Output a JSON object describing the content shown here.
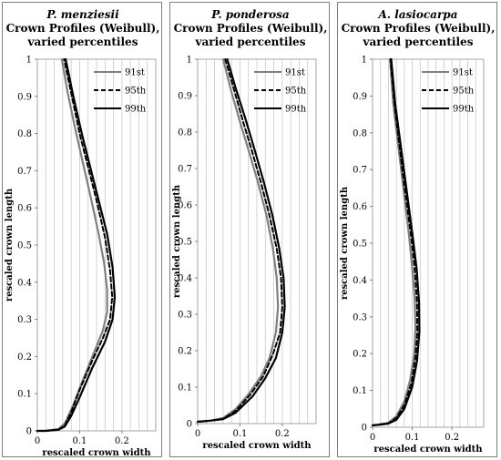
{
  "chart_data": [
    {
      "type": "line",
      "title_species": "P. menziesii",
      "title_lines": [
        "Crown Profiles (Weibull),",
        "varied percentiles"
      ],
      "xlabel": "rescaled crown width",
      "ylabel": "rescaled crown length",
      "xlim": [
        0,
        0.28
      ],
      "ylim": [
        0,
        1
      ],
      "x_ticks": [
        "0",
        "0.1",
        "0.2"
      ],
      "y_ticks": [
        "0",
        "0.1",
        "0.2",
        "0.3",
        "0.4",
        "0.5",
        "0.6",
        "0.7",
        "0.8",
        "0.9",
        "1"
      ],
      "legend_position": "top-right",
      "series": [
        {
          "name": "91st",
          "color": "#808080",
          "style": "solid",
          "points": [
            [
              0,
              0
            ],
            [
              0.02,
              0
            ],
            [
              0.05,
              0.005
            ],
            [
              0.065,
              0.02
            ],
            [
              0.085,
              0.07
            ],
            [
              0.105,
              0.13
            ],
            [
              0.13,
              0.2
            ],
            [
              0.155,
              0.27
            ],
            [
              0.165,
              0.32
            ],
            [
              0.165,
              0.38
            ],
            [
              0.158,
              0.45
            ],
            [
              0.145,
              0.53
            ],
            [
              0.128,
              0.62
            ],
            [
              0.108,
              0.72
            ],
            [
              0.088,
              0.82
            ],
            [
              0.07,
              0.92
            ],
            [
              0.058,
              1.0
            ]
          ]
        },
        {
          "name": "95th",
          "color": "#000000",
          "style": "dashed",
          "points": [
            [
              0,
              0
            ],
            [
              0.02,
              0
            ],
            [
              0.05,
              0.003
            ],
            [
              0.065,
              0.015
            ],
            [
              0.08,
              0.05
            ],
            [
              0.1,
              0.11
            ],
            [
              0.13,
              0.19
            ],
            [
              0.155,
              0.25
            ],
            [
              0.172,
              0.3
            ],
            [
              0.177,
              0.36
            ],
            [
              0.172,
              0.43
            ],
            [
              0.16,
              0.52
            ],
            [
              0.14,
              0.62
            ],
            [
              0.12,
              0.71
            ],
            [
              0.1,
              0.8
            ],
            [
              0.08,
              0.91
            ],
            [
              0.063,
              1.0
            ]
          ]
        },
        {
          "name": "99th",
          "color": "#000000",
          "style": "solid",
          "points": [
            [
              0,
              0
            ],
            [
              0.02,
              0
            ],
            [
              0.05,
              0.003
            ],
            [
              0.065,
              0.012
            ],
            [
              0.08,
              0.04
            ],
            [
              0.1,
              0.09
            ],
            [
              0.13,
              0.17
            ],
            [
              0.16,
              0.24
            ],
            [
              0.178,
              0.3
            ],
            [
              0.183,
              0.36
            ],
            [
              0.178,
              0.44
            ],
            [
              0.165,
              0.53
            ],
            [
              0.145,
              0.62
            ],
            [
              0.125,
              0.71
            ],
            [
              0.105,
              0.8
            ],
            [
              0.085,
              0.9
            ],
            [
              0.067,
              1.0
            ]
          ]
        }
      ]
    },
    {
      "type": "line",
      "title_species": "P. ponderosa",
      "title_lines": [
        "Crown Profiles (Weibull),",
        "varied percentiles"
      ],
      "xlabel": "rescaled crown width",
      "ylabel": "rescaled crown length",
      "xlim": [
        0,
        0.28
      ],
      "ylim": [
        0,
        1
      ],
      "x_ticks": [
        "0",
        "0.1",
        "0.2"
      ],
      "y_ticks": [
        "0",
        "0.1",
        "0.2",
        "0.3",
        "0.4",
        "0.5",
        "0.6",
        "0.7",
        "0.8",
        "0.9",
        "1"
      ],
      "legend_position": "top-right",
      "series": [
        {
          "name": "91st",
          "color": "#808080",
          "style": "solid",
          "points": [
            [
              0,
              0.005
            ],
            [
              0.03,
              0.008
            ],
            [
              0.06,
              0.015
            ],
            [
              0.09,
              0.04
            ],
            [
              0.12,
              0.08
            ],
            [
              0.15,
              0.13
            ],
            [
              0.17,
              0.18
            ],
            [
              0.185,
              0.25
            ],
            [
              0.19,
              0.32
            ],
            [
              0.187,
              0.4
            ],
            [
              0.178,
              0.48
            ],
            [
              0.163,
              0.57
            ],
            [
              0.143,
              0.66
            ],
            [
              0.123,
              0.74
            ],
            [
              0.102,
              0.82
            ],
            [
              0.08,
              0.91
            ],
            [
              0.06,
              1.0
            ]
          ]
        },
        {
          "name": "95th",
          "color": "#000000",
          "style": "dashed",
          "points": [
            [
              0,
              0.005
            ],
            [
              0.03,
              0.008
            ],
            [
              0.06,
              0.013
            ],
            [
              0.09,
              0.035
            ],
            [
              0.125,
              0.08
            ],
            [
              0.155,
              0.13
            ],
            [
              0.178,
              0.19
            ],
            [
              0.195,
              0.25
            ],
            [
              0.2,
              0.32
            ],
            [
              0.197,
              0.4
            ],
            [
              0.187,
              0.48
            ],
            [
              0.17,
              0.57
            ],
            [
              0.15,
              0.66
            ],
            [
              0.128,
              0.75
            ],
            [
              0.107,
              0.83
            ],
            [
              0.085,
              0.92
            ],
            [
              0.065,
              1.0
            ]
          ]
        },
        {
          "name": "99th",
          "color": "#000000",
          "style": "solid",
          "points": [
            [
              0,
              0.005
            ],
            [
              0.03,
              0.008
            ],
            [
              0.06,
              0.012
            ],
            [
              0.09,
              0.03
            ],
            [
              0.13,
              0.075
            ],
            [
              0.16,
              0.125
            ],
            [
              0.185,
              0.18
            ],
            [
              0.2,
              0.25
            ],
            [
              0.206,
              0.32
            ],
            [
              0.203,
              0.4
            ],
            [
              0.193,
              0.48
            ],
            [
              0.177,
              0.57
            ],
            [
              0.157,
              0.66
            ],
            [
              0.135,
              0.75
            ],
            [
              0.112,
              0.84
            ],
            [
              0.09,
              0.92
            ],
            [
              0.07,
              1.0
            ]
          ]
        }
      ]
    },
    {
      "type": "line",
      "title_species": "A. lasiocarpa",
      "title_lines": [
        "Crown Profiles (Weibull),",
        "varied percentiles"
      ],
      "xlabel": "rescaled crown width",
      "ylabel": "rescaled crown length",
      "xlim": [
        0,
        0.28
      ],
      "ylim": [
        0,
        1
      ],
      "x_ticks": [
        "0",
        "0.1",
        "0.2"
      ],
      "y_ticks": [
        "0",
        "0.1",
        "0.2",
        "0.3",
        "0.4",
        "0.5",
        "0.6",
        "0.7",
        "0.8",
        "0.9",
        "1"
      ],
      "legend_position": "top-right",
      "series": [
        {
          "name": "91st",
          "color": "#808080",
          "style": "solid",
          "points": [
            [
              0,
              0.005
            ],
            [
              0.02,
              0.008
            ],
            [
              0.04,
              0.012
            ],
            [
              0.06,
              0.03
            ],
            [
              0.08,
              0.07
            ],
            [
              0.095,
              0.13
            ],
            [
              0.105,
              0.2
            ],
            [
              0.108,
              0.27
            ],
            [
              0.106,
              0.35
            ],
            [
              0.1,
              0.43
            ],
            [
              0.092,
              0.52
            ],
            [
              0.082,
              0.61
            ],
            [
              0.072,
              0.7
            ],
            [
              0.062,
              0.79
            ],
            [
              0.052,
              0.88
            ],
            [
              0.044,
              1.0
            ]
          ]
        },
        {
          "name": "95th",
          "color": "#000000",
          "style": "dashed",
          "points": [
            [
              0,
              0.005
            ],
            [
              0.02,
              0.008
            ],
            [
              0.04,
              0.011
            ],
            [
              0.06,
              0.025
            ],
            [
              0.08,
              0.06
            ],
            [
              0.098,
              0.12
            ],
            [
              0.108,
              0.19
            ],
            [
              0.113,
              0.26
            ],
            [
              0.112,
              0.34
            ],
            [
              0.106,
              0.43
            ],
            [
              0.097,
              0.52
            ],
            [
              0.086,
              0.61
            ],
            [
              0.075,
              0.7
            ],
            [
              0.065,
              0.79
            ],
            [
              0.055,
              0.88
            ],
            [
              0.045,
              1.0
            ]
          ]
        },
        {
          "name": "99th",
          "color": "#000000",
          "style": "solid",
          "points": [
            [
              0,
              0.005
            ],
            [
              0.02,
              0.007
            ],
            [
              0.04,
              0.01
            ],
            [
              0.06,
              0.02
            ],
            [
              0.08,
              0.05
            ],
            [
              0.1,
              0.11
            ],
            [
              0.112,
              0.18
            ],
            [
              0.118,
              0.26
            ],
            [
              0.117,
              0.34
            ],
            [
              0.111,
              0.43
            ],
            [
              0.101,
              0.52
            ],
            [
              0.09,
              0.61
            ],
            [
              0.079,
              0.7
            ],
            [
              0.068,
              0.79
            ],
            [
              0.057,
              0.88
            ],
            [
              0.047,
              1.0
            ]
          ]
        }
      ]
    }
  ]
}
